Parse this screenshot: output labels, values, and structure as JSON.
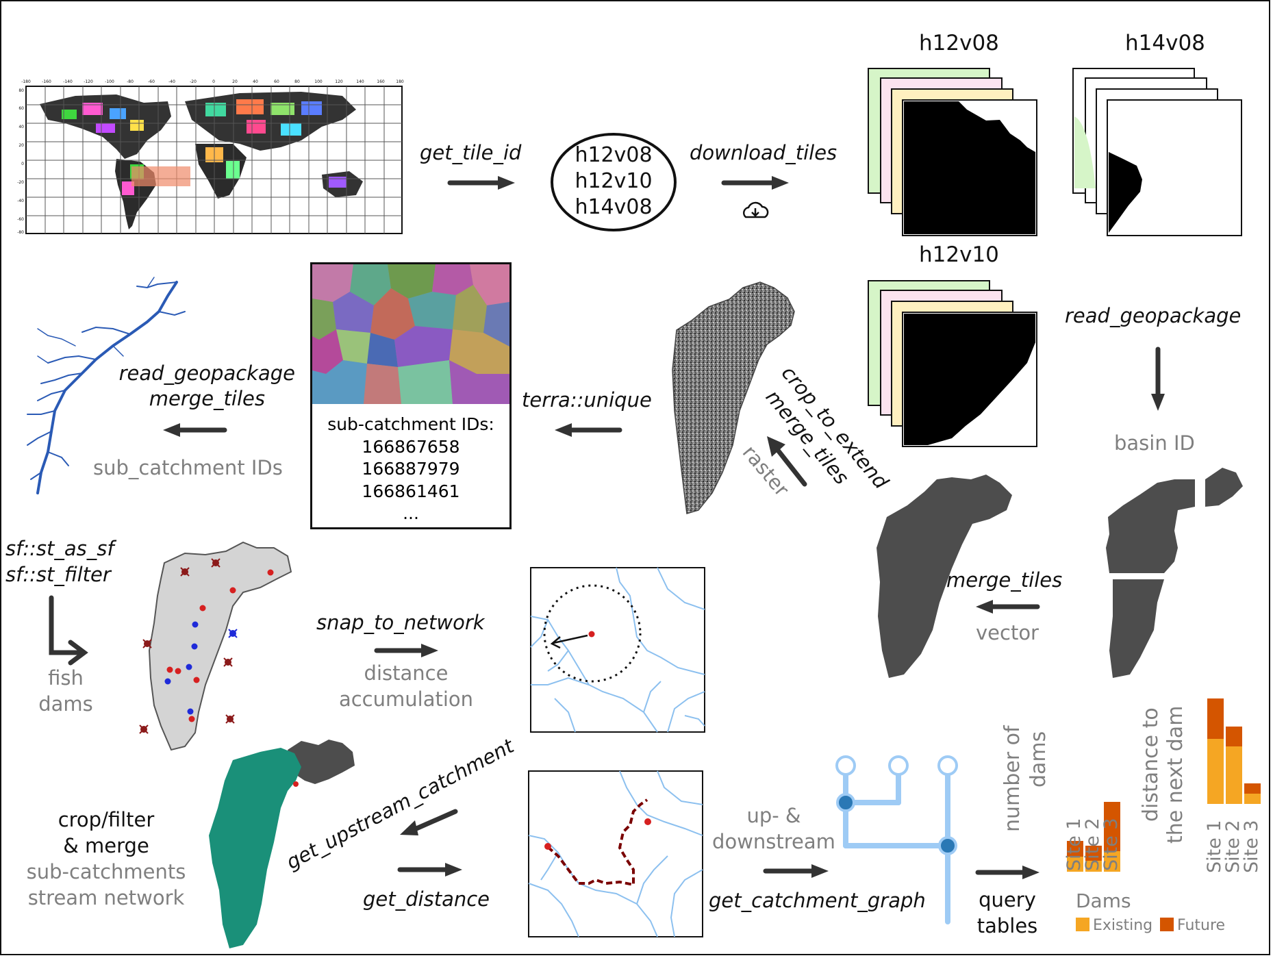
{
  "tile_titles": [
    "h12v08",
    "h14v08",
    "h12v10"
  ],
  "tile_ids": [
    "h12v08",
    "h12v10",
    "h14v08"
  ],
  "functions": {
    "get_tile_id": "get_tile_id",
    "download_tiles": "download_tiles",
    "read_geopackage_right": "read_geopackage",
    "read_geopackage_left": "read_geopackage",
    "merge_tiles_left": "merge_tiles",
    "terra_unique": "terra::unique",
    "crop_to_extend": "crop_to_extend",
    "merge_tiles_rot": "merge_tiles",
    "merge_tiles_vec": "merge_tiles",
    "st_as_sf": "sf::st_as_sf",
    "st_filter": "sf::st_filter",
    "snap_to_network": "snap_to_network",
    "get_upstream_catchment": "get_upstream_catchment",
    "get_distance": "get_distance",
    "get_catchment_graph": "get_catchment_graph"
  },
  "notes": {
    "basin_id": "basin ID",
    "raster": "raster",
    "vector": "vector",
    "sub_catchment_ids_grey": "sub_catchment IDs",
    "fish": "fish",
    "dams": "dams",
    "distance": "distance",
    "accumulation": "accumulation",
    "up_down_1": "up- &",
    "up_down_2": "downstream",
    "crop_filter_1": "crop/filter",
    "crop_filter_2": "& merge",
    "crop_filter_3": "sub-catchments",
    "crop_filter_4": "stream network",
    "query_1": "query",
    "query_2": "tables"
  },
  "subcatchment_box": {
    "title": "sub-catchment IDs:",
    "ids": [
      "166867658",
      "166887979",
      "166861461"
    ],
    "more": "..."
  },
  "world_map": {
    "x_ticks": [
      "-180",
      "-160",
      "-140",
      "-120",
      "-100",
      "-80",
      "-60",
      "-40",
      "-20",
      "0",
      "20",
      "40",
      "60",
      "80",
      "100",
      "120",
      "140",
      "160",
      "180"
    ],
    "y_ticks": [
      "80",
      "60",
      "40",
      "20",
      "0",
      "-20",
      "-40",
      "-60",
      "-80"
    ]
  },
  "colors": {
    "existing": "#f5a623",
    "future": "#d45500",
    "stream": "#8cc0ef",
    "graph": "#9ecbf5",
    "graph_node": "#2a78b5",
    "basin_dark": "#4d4d4d",
    "basin_green": "#1a9079",
    "route": "#7a0000"
  },
  "chart_data": [
    {
      "type": "bar",
      "ylabel": "number of dams",
      "categories": [
        "Site 1",
        "Site 2",
        "Site 3"
      ],
      "series": [
        {
          "name": "Existing",
          "values": [
            2.2,
            1.6,
            3.0
          ]
        },
        {
          "name": "Future",
          "values": [
            2.3,
            2.2,
            7.2
          ]
        }
      ]
    },
    {
      "type": "bar",
      "ylabel": "distance to the next dam",
      "categories": [
        "Site 1",
        "Site 2",
        "Site 3"
      ],
      "series": [
        {
          "name": "Existing",
          "values": [
            9.5,
            8.4,
            1.5
          ]
        },
        {
          "name": "Future",
          "values": [
            5.9,
            2.9,
            1.5
          ]
        }
      ]
    }
  ],
  "legend": {
    "title": "Dams",
    "items": [
      "Existing",
      "Future"
    ]
  }
}
